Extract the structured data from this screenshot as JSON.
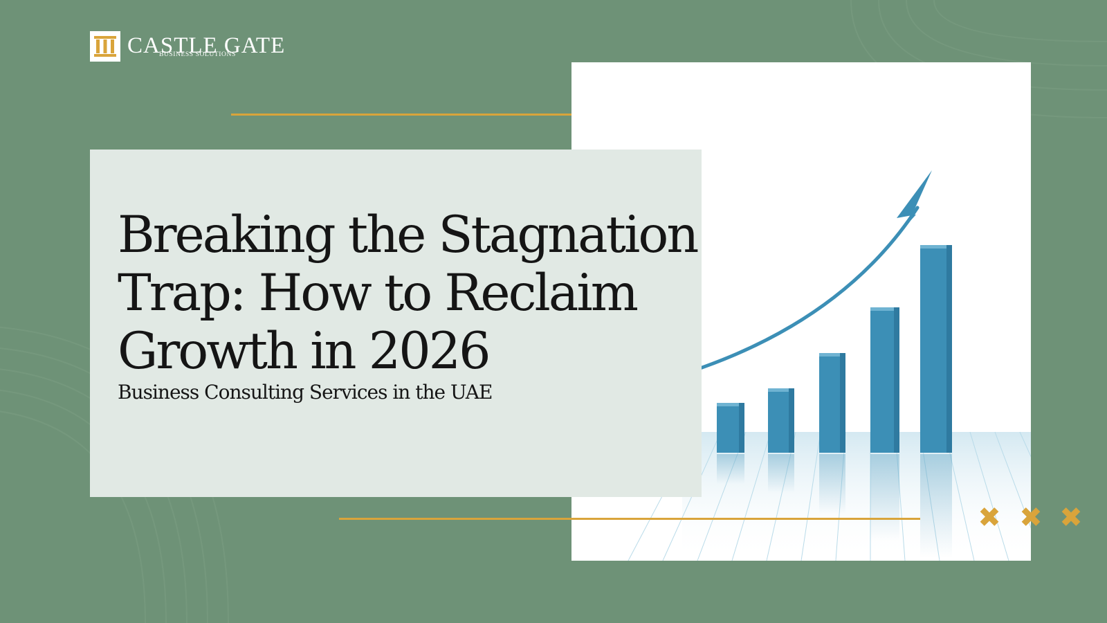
{
  "brand": {
    "name": "Castle Gate",
    "name_display": "CASTLE GATE",
    "tagline": "Business Solutions",
    "tagline_display": "BUSINESS SOLUTIONS",
    "mark_icon": "castle-pillars-icon"
  },
  "hero": {
    "title_line1": "Breaking the Stagnation",
    "title_line2": "Trap: How to Reclaim",
    "title_line3": "Growth in 2026",
    "subtitle": "Business Consulting Services in the UAE"
  },
  "illustration": {
    "type": "rising bar chart with upward arrow",
    "bar_levels": [
      0.24,
      0.31,
      0.48,
      0.7,
      1.0
    ],
    "bar_color": "#3c8fb6",
    "arrow_color": "#3c8fb6"
  },
  "decorations": {
    "cross_icon": "x-mark-icon",
    "cross_count": 3
  },
  "colors": {
    "background": "#6e9277",
    "card": "#e1e9e4",
    "accent_gold": "#d9a43b",
    "text": "#151515"
  }
}
